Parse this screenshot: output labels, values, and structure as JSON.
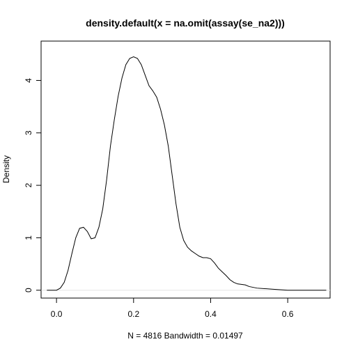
{
  "chart_data": {
    "type": "line",
    "title": "density.default(x = na.omit(assay(se_na2)))",
    "xlabel": "N = 4816   Bandwidth = 0.01497",
    "ylabel": "Density",
    "xlim": [
      -0.04,
      0.71
    ],
    "ylim": [
      -0.15,
      4.75
    ],
    "x_ticks": [
      0.0,
      0.2,
      0.4,
      0.6
    ],
    "x_tick_labels": [
      "0.0",
      "0.2",
      "0.4",
      "0.6"
    ],
    "y_ticks": [
      0,
      1,
      2,
      3,
      4
    ],
    "y_tick_labels": [
      "0",
      "1",
      "2",
      "3",
      "4"
    ],
    "grid": false,
    "baseline": 0,
    "colors": {
      "line": "#000000",
      "axis": "#000000",
      "baseline": "#e6e6e6"
    },
    "series": [
      {
        "x": [
          -0.025,
          0.0,
          0.01,
          0.02,
          0.03,
          0.04,
          0.05,
          0.06,
          0.07,
          0.08,
          0.09,
          0.1,
          0.11,
          0.12,
          0.13,
          0.14,
          0.15,
          0.16,
          0.17,
          0.18,
          0.19,
          0.2,
          0.21,
          0.22,
          0.23,
          0.24,
          0.25,
          0.26,
          0.27,
          0.28,
          0.29,
          0.3,
          0.31,
          0.32,
          0.33,
          0.34,
          0.35,
          0.36,
          0.37,
          0.38,
          0.39,
          0.4,
          0.41,
          0.42,
          0.43,
          0.44,
          0.45,
          0.46,
          0.47,
          0.48,
          0.49,
          0.5,
          0.52,
          0.54,
          0.56,
          0.58,
          0.6,
          0.62,
          0.64,
          0.66,
          0.68,
          0.7
        ],
        "y": [
          0.0,
          0.0,
          0.04,
          0.15,
          0.38,
          0.7,
          1.0,
          1.18,
          1.2,
          1.12,
          0.98,
          1.0,
          1.2,
          1.55,
          2.1,
          2.75,
          3.25,
          3.7,
          4.05,
          4.3,
          4.42,
          4.45,
          4.42,
          4.3,
          4.1,
          3.9,
          3.8,
          3.68,
          3.45,
          3.15,
          2.75,
          2.2,
          1.65,
          1.2,
          0.95,
          0.82,
          0.75,
          0.7,
          0.65,
          0.62,
          0.62,
          0.6,
          0.52,
          0.42,
          0.35,
          0.28,
          0.2,
          0.15,
          0.12,
          0.11,
          0.1,
          0.07,
          0.04,
          0.03,
          0.02,
          0.01,
          0.0,
          0.0,
          0.0,
          0.0,
          0.0,
          0.0
        ]
      }
    ]
  }
}
